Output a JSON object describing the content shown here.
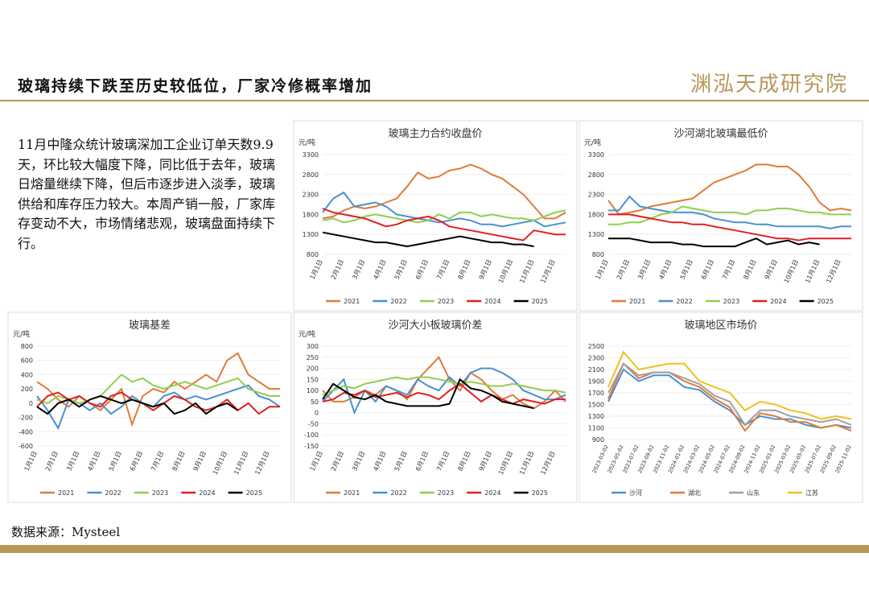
{
  "header": {
    "title": "玻璃持续下跌至历史较低位，厂家冷修概率增加",
    "logo": "渊泓天成研究院"
  },
  "text": "11月中隆众统计玻璃深加工企业订单天数9.9天，环比较大幅度下降，同比低于去年，玻璃日熔量继续下降，但后市逐步进入淡季，玻璃供给和库存压力较大。本周产销一般，厂家库存变动不大，市场情绪悲观，玻璃盘面持续下行。",
  "source": "数据来源：Mysteel",
  "chart_data": [
    {
      "type": "line",
      "title": "玻璃主力合约收盘价",
      "ylabel": "元/吨",
      "legend": "bottom",
      "categories": [
        "1月1日",
        null,
        "2月1日",
        null,
        "3月1日",
        null,
        "4月1日",
        null,
        "5月1日",
        null,
        "6月1日",
        null,
        "7月1日",
        null,
        "8月1日",
        null,
        "9月1日",
        null,
        "10月1日",
        null,
        "11月1日",
        null,
        "12月1日",
        null
      ],
      "ylim": [
        800,
        3300
      ],
      "yticks": [
        800,
        1300,
        1800,
        2300,
        2800,
        3300
      ],
      "series": [
        {
          "name": "2021",
          "color": "#e07b39",
          "values": [
            1700,
            1750,
            1900,
            2000,
            1950,
            2000,
            2100,
            2200,
            2500,
            2850,
            2700,
            2750,
            2900,
            2950,
            3050,
            2950,
            2800,
            2700,
            2500,
            2300,
            2000,
            1700,
            1700,
            1850
          ]
        },
        {
          "name": "2022",
          "color": "#4a90d0",
          "values": [
            1850,
            2200,
            2350,
            2000,
            2050,
            2100,
            2000,
            1800,
            1750,
            1700,
            1650,
            1600,
            1650,
            1700,
            1650,
            1550,
            1550,
            1500,
            1550,
            1600,
            1650,
            1500,
            1550,
            1600
          ]
        },
        {
          "name": "2023",
          "color": "#8fcf4f",
          "values": [
            1650,
            1700,
            1600,
            1650,
            1750,
            1800,
            1750,
            1700,
            1650,
            1600,
            1650,
            1800,
            1700,
            1850,
            1850,
            1750,
            1800,
            1750,
            1700,
            1700,
            1650,
            1750,
            1850,
            1900
          ]
        },
        {
          "name": "2024",
          "color": "#e02020",
          "values": [
            1950,
            1850,
            1800,
            1750,
            1700,
            1600,
            1500,
            1550,
            1650,
            1700,
            1750,
            1650,
            1500,
            1450,
            1400,
            1350,
            1300,
            1250,
            1200,
            1150,
            1400,
            1350,
            1300,
            1300
          ]
        },
        {
          "name": "2025",
          "color": "#000000",
          "values": [
            1350,
            1300,
            1250,
            1200,
            1150,
            1100,
            1100,
            1050,
            1000,
            1050,
            1100,
            1150,
            1200,
            1250,
            1200,
            1150,
            1100,
            1100,
            1050,
            1050,
            1000,
            null,
            null,
            null
          ]
        }
      ]
    },
    {
      "type": "line",
      "title": "沙河湖北玻璃最低价",
      "ylabel": "元/吨",
      "legend": "bottom",
      "categories": [
        "1月1日",
        null,
        "2月1日",
        null,
        "3月1日",
        null,
        "4月1日",
        null,
        "5月1日",
        null,
        "6月1日",
        null,
        "7月1日",
        null,
        "8月1日",
        null,
        "9月1日",
        null,
        "10月1日",
        null,
        "11月1日",
        null,
        "12月1日",
        null
      ],
      "ylim": [
        800,
        3300
      ],
      "yticks": [
        800,
        1300,
        1800,
        2300,
        2800,
        3300
      ],
      "series": [
        {
          "name": "2021",
          "color": "#e07b39",
          "values": [
            2150,
            1800,
            1850,
            1900,
            2000,
            2050,
            2100,
            2150,
            2200,
            2400,
            2600,
            2700,
            2800,
            2900,
            3050,
            3050,
            3000,
            3000,
            2800,
            2500,
            2100,
            1900,
            1950,
            1900
          ]
        },
        {
          "name": "2022",
          "color": "#4a90d0",
          "values": [
            1900,
            1900,
            2250,
            2000,
            1950,
            1900,
            1850,
            1850,
            1850,
            1800,
            1700,
            1650,
            1600,
            1600,
            1550,
            1550,
            1500,
            1500,
            1500,
            1500,
            1500,
            1450,
            1500,
            1500
          ]
        },
        {
          "name": "2023",
          "color": "#8fcf4f",
          "values": [
            1550,
            1550,
            1600,
            1600,
            1700,
            1800,
            1850,
            2000,
            1950,
            1900,
            1850,
            1850,
            1850,
            1800,
            1900,
            1900,
            1950,
            1950,
            1900,
            1850,
            1850,
            1800,
            1800,
            1800
          ]
        },
        {
          "name": "2024",
          "color": "#e02020",
          "values": [
            1800,
            1800,
            1800,
            1750,
            1700,
            1650,
            1600,
            1600,
            1550,
            1550,
            1500,
            1450,
            1400,
            1350,
            1300,
            1250,
            1200,
            1200,
            1150,
            1200,
            1200,
            1200,
            1200,
            1200
          ]
        },
        {
          "name": "2025",
          "color": "#000000",
          "values": [
            1200,
            1200,
            1200,
            1150,
            1100,
            1100,
            1100,
            1050,
            1050,
            1000,
            1000,
            1000,
            1000,
            1100,
            1200,
            1050,
            1100,
            1150,
            1050,
            1100,
            1050,
            null,
            null,
            null
          ]
        }
      ]
    },
    {
      "type": "line",
      "title": "玻璃基差",
      "ylabel": "元/吨",
      "legend": "bottom",
      "categories": [
        "1月1日",
        null,
        "2月1日",
        null,
        "3月1日",
        null,
        "4月1日",
        null,
        "5月1日",
        null,
        "6月1日",
        null,
        "7月1日",
        null,
        "8月1日",
        null,
        "9月1日",
        null,
        "10月1日",
        null,
        "11月1日",
        null,
        "12月1日",
        null
      ],
      "ylim": [
        -600,
        800
      ],
      "yticks": [
        -600,
        -400,
        -200,
        0,
        200,
        400,
        600,
        800
      ],
      "series": [
        {
          "name": "2021",
          "color": "#e07b39",
          "values": [
            300,
            200,
            50,
            -50,
            100,
            0,
            -100,
            50,
            200,
            -300,
            100,
            200,
            150,
            300,
            200,
            300,
            400,
            300,
            600,
            700,
            400,
            300,
            200,
            200
          ]
        },
        {
          "name": "2022",
          "color": "#4a90d0",
          "values": [
            100,
            -100,
            -350,
            50,
            0,
            -100,
            0,
            -150,
            -50,
            100,
            0,
            -50,
            100,
            150,
            50,
            100,
            50,
            100,
            150,
            200,
            250,
            100,
            50,
            -50
          ]
        },
        {
          "name": "2023",
          "color": "#8fcf4f",
          "values": [
            50,
            0,
            100,
            50,
            0,
            50,
            100,
            250,
            400,
            300,
            350,
            250,
            200,
            250,
            300,
            250,
            200,
            250,
            300,
            350,
            200,
            150,
            100,
            100
          ]
        },
        {
          "name": "2024",
          "color": "#e02020",
          "values": [
            -50,
            100,
            150,
            50,
            100,
            0,
            -50,
            100,
            150,
            50,
            0,
            -100,
            0,
            100,
            50,
            -50,
            -100,
            -50,
            50,
            -100,
            0,
            -150,
            -50,
            -50
          ]
        },
        {
          "name": "2025",
          "color": "#000000",
          "values": [
            -50,
            -150,
            0,
            50,
            -50,
            50,
            100,
            50,
            0,
            50,
            0,
            -50,
            0,
            -150,
            -100,
            0,
            -150,
            -50,
            0,
            -100,
            null,
            null,
            null,
            null
          ]
        }
      ]
    },
    {
      "type": "line",
      "title": "沙河大小板玻璃价差",
      "ylabel": "元/吨",
      "legend": "bottom",
      "categories": [
        "1月1日",
        null,
        "2月1日",
        null,
        "3月1日",
        null,
        "4月1日",
        null,
        "5月1日",
        null,
        "6月1日",
        null,
        "7月1日",
        null,
        "8月1日",
        null,
        "9月1日",
        null,
        "10月1日",
        null,
        "11月1日",
        null,
        "12月1日",
        null
      ],
      "ylim": [
        -150,
        300
      ],
      "yticks": [
        -150,
        -100,
        -50,
        0,
        50,
        100,
        150,
        200,
        250,
        300
      ],
      "series": [
        {
          "name": "2021",
          "color": "#e07b39",
          "values": [
            100,
            50,
            50,
            70,
            100,
            80,
            120,
            100,
            60,
            150,
            200,
            250,
            150,
            100,
            180,
            150,
            100,
            60,
            80,
            40,
            20,
            50,
            100,
            50
          ]
        },
        {
          "name": "2022",
          "color": "#4a90d0",
          "values": [
            50,
            100,
            150,
            0,
            100,
            50,
            120,
            100,
            80,
            150,
            120,
            100,
            160,
            120,
            180,
            200,
            200,
            180,
            150,
            100,
            80,
            60,
            60,
            80
          ]
        },
        {
          "name": "2023",
          "color": "#8fcf4f",
          "values": [
            80,
            100,
            120,
            110,
            130,
            140,
            150,
            160,
            150,
            160,
            160,
            150,
            140,
            130,
            140,
            130,
            120,
            120,
            130,
            120,
            110,
            100,
            100,
            90
          ]
        },
        {
          "name": "2024",
          "color": "#e02020",
          "values": [
            50,
            60,
            90,
            80,
            100,
            70,
            80,
            90,
            70,
            90,
            80,
            60,
            100,
            130,
            90,
            50,
            80,
            60,
            40,
            60,
            50,
            40,
            60,
            60
          ]
        },
        {
          "name": "2025",
          "color": "#000000",
          "values": [
            60,
            130,
            100,
            70,
            60,
            80,
            50,
            40,
            30,
            30,
            30,
            30,
            40,
            150,
            110,
            100,
            80,
            50,
            40,
            30,
            20,
            null,
            null,
            null
          ]
        }
      ]
    },
    {
      "type": "line",
      "title": "玻璃地区市场价",
      "legend": "bottom",
      "categories": [
        "2023-03-02",
        "2023-05-02",
        "2023-07-02",
        "2023-09-02",
        "2023-11-02",
        "2024-01-02",
        "2024-03-02",
        "2024-05-02",
        "2024-07-02",
        "2024-09-02",
        "2024-11-02",
        "2025-01-02",
        "2025-03-02",
        "2025-05-02",
        "2025-07-02",
        "2025-09-02",
        "2025-11-02"
      ],
      "ylim": [
        900,
        2500
      ],
      "yticks": [
        900,
        1100,
        1300,
        1500,
        1700,
        1900,
        2100,
        2300,
        2500
      ],
      "series": [
        {
          "name": "沙河",
          "color": "#4a90d0",
          "values": [
            1550,
            2100,
            1900,
            2000,
            2000,
            1800,
            1750,
            1550,
            1400,
            1150,
            1300,
            1250,
            1250,
            1150,
            1100,
            1150,
            1100
          ]
        },
        {
          "name": "湖北",
          "color": "#e07b39",
          "values": [
            1600,
            2200,
            1950,
            2050,
            2050,
            1900,
            1800,
            1600,
            1450,
            1050,
            1350,
            1300,
            1200,
            1200,
            1100,
            1150,
            1050
          ]
        },
        {
          "name": "山东",
          "color": "#a0a0a0",
          "values": [
            1700,
            2200,
            2000,
            2050,
            2050,
            1950,
            1850,
            1650,
            1550,
            1150,
            1400,
            1400,
            1300,
            1250,
            1200,
            1250,
            1150
          ]
        },
        {
          "name": "江苏",
          "color": "#f0c020",
          "values": [
            1800,
            2400,
            2100,
            2150,
            2200,
            2200,
            1900,
            1800,
            1700,
            1400,
            1550,
            1500,
            1400,
            1350,
            1250,
            1300,
            1250
          ]
        }
      ]
    }
  ]
}
